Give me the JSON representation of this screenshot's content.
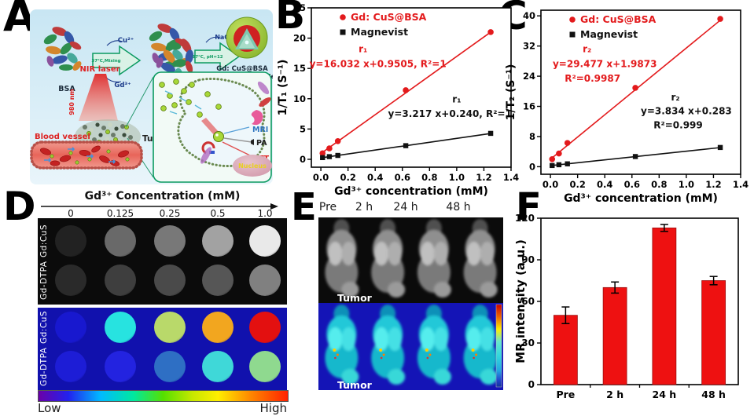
{
  "panel_labels": {
    "a": "A",
    "b": "B",
    "c": "C",
    "d": "D",
    "e": "E",
    "f": "F"
  },
  "colors": {
    "accent_red": "#e31a1c",
    "series_black": "#111111",
    "bar_red": "#ee1111",
    "panel_a_bg": "#d6ecf5",
    "arrow_green": "#0a9a60",
    "mr_blue_bg": "#1414b6"
  },
  "panel_a": {
    "bsa_label": "BSA",
    "arrow1_top": "Cu²⁺",
    "arrow1_inside": "37°C,Mixing",
    "arrow1_bottom": "Gd³⁺",
    "complex_label_1": "Gd-BSA-Cu",
    "complex_label_2": "complex",
    "arrow2_top": "NaOH",
    "arrow2_inside": "37°C, pH=12",
    "arrow2_bottom": "Na₂S",
    "np_label_1": "Gd: CuS@BSA",
    "np_label_2": "hybrid nanoparticles",
    "nir_laser": "NIR laser",
    "wavelength": "980 nm",
    "blood_vessel": "Blood vessel",
    "tumor": "Tumor",
    "mri": "MRI",
    "pa": "PA",
    "ptt": "PTT",
    "nucleus": "Nucleus"
  },
  "chart_data": [
    {
      "id": "B",
      "type": "scatter-line",
      "x": [
        0.0125,
        0.0625,
        0.125,
        0.625,
        1.25
      ],
      "series": [
        {
          "name": "Gd: CuS@BSA",
          "marker": "circle",
          "color": "#e31a1c",
          "values": [
            1.0,
            1.8,
            3.0,
            11.4,
            21.0
          ],
          "slope": 16.032,
          "intercept": 0.9505,
          "fit_label": "r₁",
          "fit_equation": "y=16.032 x+0.9505, R²=1"
        },
        {
          "name": "Magnevist",
          "marker": "square",
          "color": "#111111",
          "values": [
            0.28,
            0.44,
            0.64,
            2.25,
            4.28
          ],
          "slope": 3.217,
          "intercept": 0.24,
          "fit_label": "r₁",
          "fit_equation": "y=3.217 x+0.240, R²=1"
        }
      ],
      "annotations": [
        {
          "text": "r₁",
          "x": 0.31,
          "y": 17.7,
          "color": "#e31a1c"
        },
        {
          "text": "y=16.032 x+0.9505, R²=1",
          "x": 0.42,
          "y": 15.2,
          "color": "#e31a1c"
        },
        {
          "text": "r₁",
          "x": 1.0,
          "y": 9.4,
          "color": "#111111"
        },
        {
          "text": "y=3.217 x+0.240, R²=1",
          "x": 0.95,
          "y": 7.0,
          "color": "#111111"
        }
      ],
      "xlabel": "Gd³⁺ concentration (mM)",
      "ylabel": "1/T₁ (S⁻¹)",
      "xlim": [
        -0.07,
        1.4
      ],
      "ylim": [
        -1.3,
        25
      ],
      "xticks": [
        0,
        0.2,
        0.4,
        0.6,
        0.8,
        1.0,
        1.2,
        1.4
      ],
      "yticks": [
        0,
        5,
        10,
        15,
        20,
        25
      ],
      "grid": false,
      "legend_position": "top-left"
    },
    {
      "id": "C",
      "type": "scatter-line",
      "x": [
        0.0125,
        0.0625,
        0.125,
        0.625,
        1.25
      ],
      "series": [
        {
          "name": "Gd: CuS@BSA",
          "marker": "circle",
          "color": "#e31a1c",
          "values": [
            2.0,
            3.5,
            6.3,
            20.9,
            39.2
          ],
          "slope": 29.477,
          "intercept": 1.9873,
          "fit_label": "r₂",
          "fit_equation": "y=29.477 x+1.9873",
          "fit_r2": "R²=0.9987"
        },
        {
          "name": "Magnevist",
          "marker": "square",
          "color": "#111111",
          "values": [
            0.32,
            0.52,
            0.76,
            2.7,
            5.1
          ],
          "slope": 3.834,
          "intercept": 0.283,
          "fit_label": "r₂",
          "fit_equation": "y=3.834 x+0.283",
          "fit_r2": "R²=0.999"
        }
      ],
      "annotations": [
        {
          "text": "r₂",
          "x": 0.27,
          "y": 30.4,
          "color": "#e31a1c"
        },
        {
          "text": "y=29.477 x+1.9873",
          "x": 0.4,
          "y": 26.4,
          "color": "#e31a1c"
        },
        {
          "text": "R²=0.9987",
          "x": 0.31,
          "y": 22.6,
          "color": "#e31a1c"
        },
        {
          "text": "r₂",
          "x": 0.92,
          "y": 17.6,
          "color": "#111111"
        },
        {
          "text": "y=3.834 x+0.283",
          "x": 1.0,
          "y": 13.9,
          "color": "#111111"
        },
        {
          "text": "R²=0.999",
          "x": 0.94,
          "y": 10.2,
          "color": "#111111"
        }
      ],
      "xlabel": "Gd³⁺ concentration (mM)",
      "ylabel": "1/T₂ (S⁻¹)",
      "xlim": [
        -0.07,
        1.4
      ],
      "ylim": [
        -2,
        41.5
      ],
      "xticks": [
        0,
        0.2,
        0.4,
        0.6,
        0.8,
        1.0,
        1.2,
        1.4
      ],
      "yticks": [
        0,
        8,
        16,
        24,
        32,
        40
      ],
      "grid": false,
      "legend_position": "top-left"
    },
    {
      "id": "F",
      "type": "bar",
      "categories": [
        "Pre",
        "2 h",
        "24 h",
        "48 h"
      ],
      "values": [
        50,
        70,
        113,
        75
      ],
      "errors": [
        6,
        4,
        2.5,
        3
      ],
      "ylabel": "MR intensity (a.u.)",
      "xlabel": "",
      "ylim": [
        0,
        120
      ],
      "yticks": [
        0,
        30,
        60,
        90,
        120
      ],
      "bar_color": "#ee1111",
      "grid": false
    }
  ],
  "panel_d": {
    "title": "Gd³⁺ Concentration (mM)",
    "columns": [
      "0",
      "0.125",
      "0.25",
      "0.5",
      "1.0"
    ],
    "gray_rows": [
      {
        "label": "Gd:CuS",
        "shades": [
          "#222222",
          "#696969",
          "#787878",
          "#a2a2a2",
          "#e9e9e9"
        ]
      },
      {
        "label": "Gd-DTPA",
        "shades": [
          "#2a2a2a",
          "#3e3e3e",
          "#4a4a4a",
          "#565656",
          "#808080"
        ]
      }
    ],
    "color_rows": [
      {
        "label": "Gd:CuS",
        "colors": [
          "#1818cf",
          "#27e3e0",
          "#b9d96a",
          "#f2a61f",
          "#e31010"
        ]
      },
      {
        "label": "Gd-DTPA",
        "colors": [
          "#1d1dd6",
          "#2323e0",
          "#2e6fc4",
          "#3fd8d8",
          "#8fd98f"
        ]
      }
    ],
    "scale_low": "Low",
    "scale_high": "High"
  },
  "panel_e": {
    "timepoints": [
      "Pre",
      "2 h",
      "24 h",
      "48 h"
    ],
    "tumor": "Tumor"
  }
}
